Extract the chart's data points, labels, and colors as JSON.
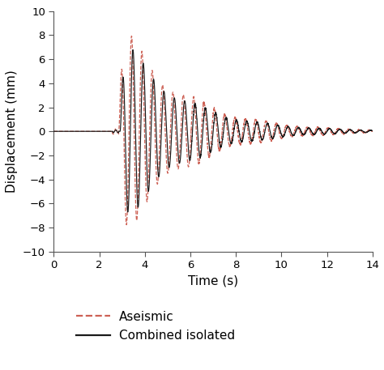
{
  "title": "",
  "xlabel": "Time (s)",
  "ylabel": "Displacement (mm)",
  "xlim": [
    0,
    14
  ],
  "ylim": [
    -10,
    10
  ],
  "xticks": [
    0,
    2,
    4,
    6,
    8,
    10,
    12,
    14
  ],
  "yticks": [
    -10,
    -8,
    -6,
    -4,
    -2,
    0,
    2,
    4,
    6,
    8,
    10
  ],
  "aseismic_color": "#cd6155",
  "combined_color": "#1a1a1a",
  "background_color": "#ffffff",
  "legend_labels": [
    "Aseismic",
    "Combined isolated"
  ],
  "figsize": [
    4.74,
    4.57
  ],
  "dpi": 100
}
